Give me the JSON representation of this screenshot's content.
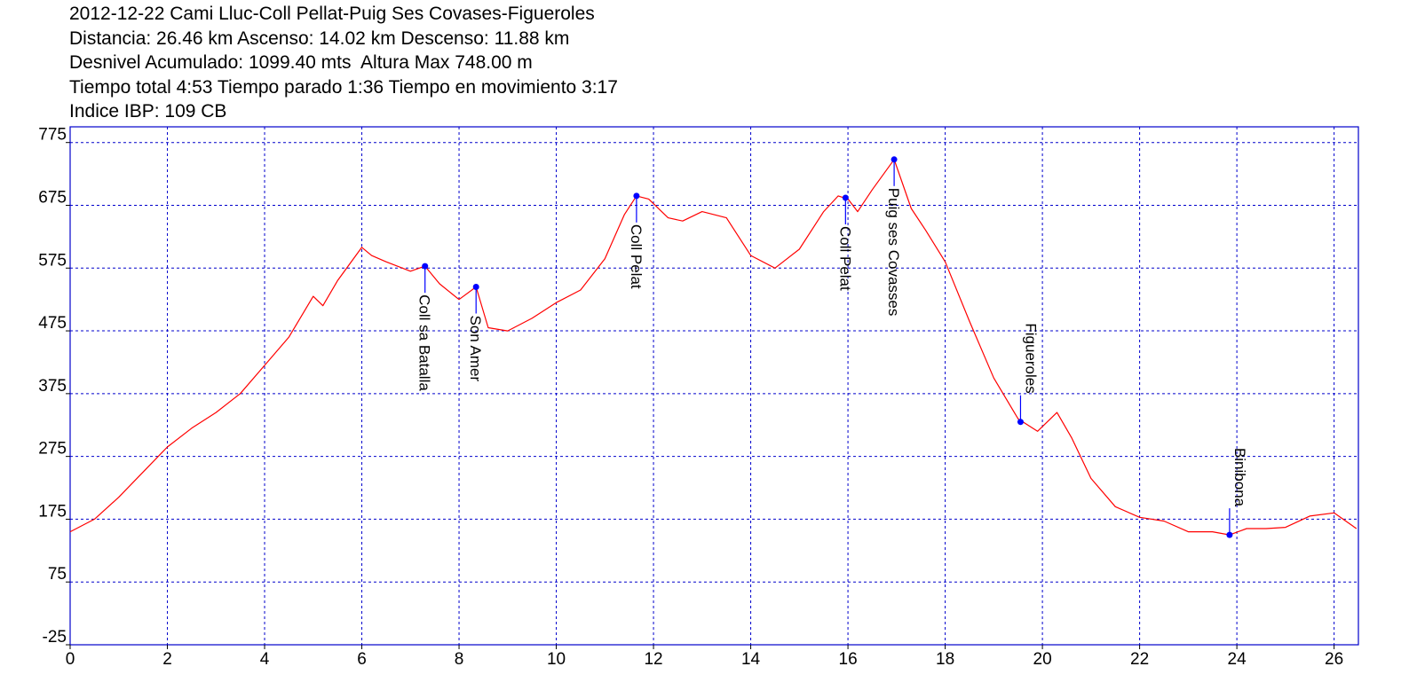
{
  "header": {
    "lines": [
      "2012-12-22 Cami Lluc-Coll Pellat-Puig Ses Covases-Figueroles",
      "Distancia: 26.46 km Ascenso: 14.02 km Descenso: 11.88 km",
      "Desnivel Acumulado: 1099.40 mts  Altura Max 748.00 m",
      "Tiempo total 4:53 Tiempo parado 1:36 Tiempo en movimiento 3:17",
      "Indice IBP: 109 CB"
    ]
  },
  "chart_data": {
    "type": "line",
    "title": "2012-12-22 Cami Lluc-Coll Pellat-Puig Ses Covases-Figueroles",
    "xlim": [
      0,
      26.5
    ],
    "ylim": [
      -25,
      800
    ],
    "x_ticks": [
      0,
      2,
      4,
      6,
      8,
      10,
      12,
      14,
      16,
      18,
      20,
      22,
      24,
      26
    ],
    "y_ticks": [
      -25,
      75,
      175,
      275,
      375,
      475,
      575,
      675,
      775
    ],
    "grid": true,
    "colors": {
      "line": "#ff0000",
      "grid": "#0000cc",
      "frame": "#0000cc",
      "waypoint": "#0000ff"
    },
    "series": [
      {
        "x": [
          0,
          0.5,
          1,
          1.5,
          2,
          2.5,
          3,
          3.5,
          4,
          4.5,
          5,
          5.2,
          5.5,
          6,
          6.2,
          6.5,
          7,
          7.3,
          7.6,
          8,
          8.35,
          8.6,
          9,
          9.5,
          10,
          10.5,
          11,
          11.4,
          11.65,
          11.9,
          12.3,
          12.6,
          13,
          13.5,
          14,
          14.5,
          15,
          15.5,
          15.8,
          16,
          16.2,
          16.5,
          16.95,
          17.3,
          17.6,
          18,
          18.5,
          19,
          19.5,
          19.9,
          20.3,
          20.6,
          21,
          21.5,
          22,
          22.5,
          23,
          23.5,
          23.85,
          24.2,
          24.6,
          25,
          25.5,
          26,
          26.46
        ],
        "y": [
          155,
          175,
          210,
          250,
          290,
          320,
          345,
          375,
          420,
          465,
          530,
          515,
          555,
          608,
          595,
          585,
          570,
          578,
          550,
          525,
          545,
          480,
          475,
          495,
          520,
          540,
          590,
          660,
          690,
          685,
          655,
          650,
          665,
          655,
          595,
          575,
          605,
          665,
          690,
          685,
          665,
          700,
          748,
          670,
          635,
          585,
          490,
          400,
          335,
          315,
          345,
          305,
          240,
          195,
          178,
          172,
          155,
          155,
          150,
          160,
          160,
          162,
          180,
          185,
          160
        ]
      }
    ],
    "waypoints": [
      {
        "name": "Coll sa Batalla",
        "x": 7.3,
        "y": 578
      },
      {
        "name": "Son Amer",
        "x": 8.35,
        "y": 545
      },
      {
        "name": "Coll Pelat",
        "x": 11.65,
        "y": 690
      },
      {
        "name": "Coll Pelat",
        "x": 15.95,
        "y": 687
      },
      {
        "name": "Puig ses Covasses",
        "x": 16.95,
        "y": 748
      },
      {
        "name": "Figueroles",
        "x": 19.55,
        "y": 330
      },
      {
        "name": "Binibona",
        "x": 23.85,
        "y": 150
      }
    ]
  }
}
